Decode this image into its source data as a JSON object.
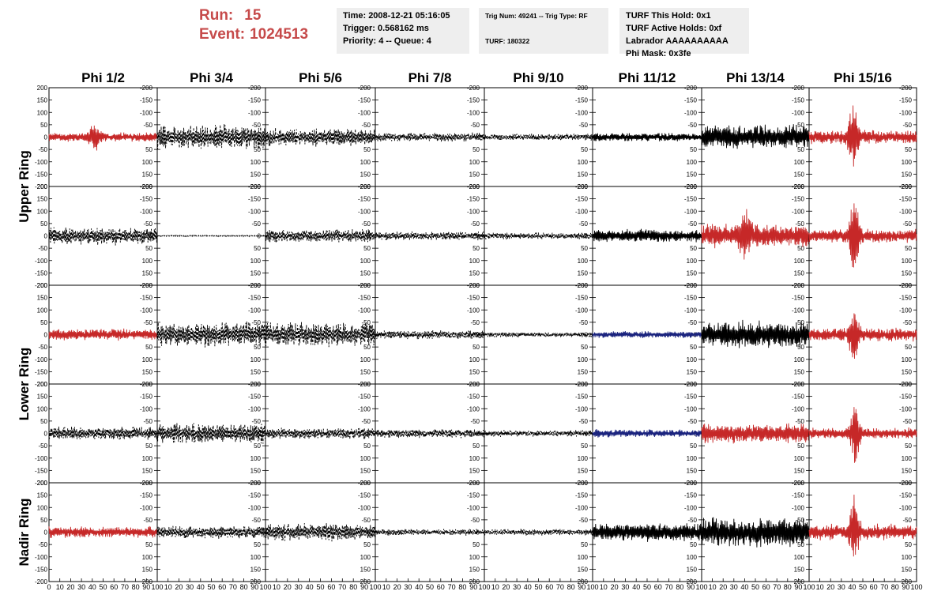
{
  "header": {
    "run_label": "Run:",
    "run_value": "15",
    "event_label": "Event:",
    "event_value": "1024513",
    "info1": [
      "Time: 2008-12-21 05:16:05",
      "Trigger: 0.568162 ms",
      "Priority: 4 -- Queue: 4"
    ],
    "info2": [
      "Trig Num: 49241 -- Trig Type: RF",
      "TURF: 180322"
    ],
    "info3": [
      "TURF This Hold: 0x1",
      "TURF Active Holds: 0xf",
      "Labrador AAAAAAAAAA",
      "Phi Mask: 0x3fe"
    ]
  },
  "chart_data": {
    "type": "line",
    "columns": [
      "Phi 1/2",
      "Phi 3/4",
      "Phi 5/6",
      "Phi 7/8",
      "Phi 9/10",
      "Phi 11/12",
      "Phi 13/14",
      "Phi 15/16"
    ],
    "ring_labels": [
      "Upper Ring",
      "Lower Ring",
      "Nadir Ring"
    ],
    "ylim": [
      -200,
      200
    ],
    "xlim": [
      0,
      100
    ],
    "yticks": [
      -200,
      -150,
      -100,
      -50,
      0,
      50,
      100,
      150,
      200
    ],
    "yticks_right": [
      "200",
      "150",
      "100",
      "50",
      "0",
      "-50",
      "-100",
      "-150",
      "-200"
    ],
    "x_tick_labels": [
      [
        "0",
        "10",
        "20",
        "30",
        "40",
        "50",
        "60",
        "70",
        "80",
        "90",
        "100"
      ],
      [
        "10",
        "20",
        "30",
        "40",
        "50",
        "60",
        "70",
        "80",
        "90",
        "100"
      ],
      [
        "10",
        "20",
        "30",
        "40",
        "50",
        "60",
        "70",
        "80",
        "90",
        "100"
      ],
      [
        "10",
        "20",
        "30",
        "40",
        "50",
        "60",
        "70",
        "80",
        "90",
        "100"
      ],
      [
        "10",
        "20",
        "30",
        "40",
        "50",
        "60",
        "70",
        "80",
        "90",
        "100"
      ],
      [
        "10",
        "20",
        "30",
        "40",
        "50",
        "60",
        "70",
        "80",
        "90",
        "100"
      ],
      [
        "10",
        "20",
        "30",
        "40",
        "50",
        "60",
        "70",
        "80",
        "90",
        "100"
      ],
      [
        "10",
        "20",
        "30",
        "40",
        "50",
        "60",
        "70",
        "80",
        "90",
        "100"
      ]
    ],
    "colors": {
      "red": "#c62828",
      "black": "#000000",
      "blue": "#1a237e"
    },
    "traces": [
      [
        {
          "color": "red",
          "style": "solid",
          "amplitude": 20,
          "pulse_at": 42,
          "pulse_amp": 60
        },
        {
          "color": "black",
          "style": "dashed",
          "amplitude": 55,
          "pulse_at": 0,
          "pulse_amp": 0
        },
        {
          "color": "black",
          "style": "dashed",
          "amplitude": 40,
          "pulse_at": 0,
          "pulse_amp": 0
        },
        {
          "color": "black",
          "style": "dashed",
          "amplitude": 20,
          "pulse_at": 0,
          "pulse_amp": 0
        },
        {
          "color": "black",
          "style": "dashed",
          "amplitude": 15,
          "pulse_at": 0,
          "pulse_amp": 0
        },
        {
          "color": "black",
          "style": "solid",
          "amplitude": 18,
          "pulse_at": 0,
          "pulse_amp": 0
        },
        {
          "color": "black",
          "style": "solid",
          "amplitude": 55,
          "pulse_at": 0,
          "pulse_amp": 0
        },
        {
          "color": "red",
          "style": "solid",
          "amplitude": 30,
          "pulse_at": 41,
          "pulse_amp": 150
        }
      ],
      [
        {
          "color": "black",
          "style": "dashed",
          "amplitude": 40,
          "pulse_at": 0,
          "pulse_amp": 0
        },
        {
          "color": "black",
          "style": "dashed",
          "amplitude": 3,
          "pulse_at": 0,
          "pulse_amp": 0
        },
        {
          "color": "black",
          "style": "dashed",
          "amplitude": 30,
          "pulse_at": 0,
          "pulse_amp": 0
        },
        {
          "color": "black",
          "style": "dashed",
          "amplitude": 20,
          "pulse_at": 0,
          "pulse_amp": 0
        },
        {
          "color": "black",
          "style": "dashed",
          "amplitude": 15,
          "pulse_at": 0,
          "pulse_amp": 0
        },
        {
          "color": "black",
          "style": "solid",
          "amplitude": 30,
          "pulse_at": 0,
          "pulse_amp": 0
        },
        {
          "color": "red",
          "style": "solid",
          "amplitude": 55,
          "pulse_at": 40,
          "pulse_amp": 110
        },
        {
          "color": "red",
          "style": "solid",
          "amplitude": 30,
          "pulse_at": 42,
          "pulse_amp": 160
        }
      ],
      [
        {
          "color": "red",
          "style": "solid",
          "amplitude": 25,
          "pulse_at": 0,
          "pulse_amp": 0
        },
        {
          "color": "black",
          "style": "dashed",
          "amplitude": 55,
          "pulse_at": 0,
          "pulse_amp": 0
        },
        {
          "color": "black",
          "style": "dashed",
          "amplitude": 55,
          "pulse_at": 0,
          "pulse_amp": 0
        },
        {
          "color": "black",
          "style": "dashed",
          "amplitude": 20,
          "pulse_at": 0,
          "pulse_amp": 0
        },
        {
          "color": "black",
          "style": "dashed",
          "amplitude": 12,
          "pulse_at": 0,
          "pulse_amp": 0
        },
        {
          "color": "blue",
          "style": "solid",
          "amplitude": 15,
          "pulse_at": 0,
          "pulse_amp": 0
        },
        {
          "color": "black",
          "style": "solid",
          "amplitude": 60,
          "pulse_at": 0,
          "pulse_amp": 0
        },
        {
          "color": "red",
          "style": "solid",
          "amplitude": 30,
          "pulse_at": 42,
          "pulse_amp": 120
        }
      ],
      [
        {
          "color": "black",
          "style": "dashed",
          "amplitude": 30,
          "pulse_at": 0,
          "pulse_amp": 0
        },
        {
          "color": "black",
          "style": "dashed",
          "amplitude": 45,
          "pulse_at": 0,
          "pulse_amp": 0
        },
        {
          "color": "black",
          "style": "dashed",
          "amplitude": 25,
          "pulse_at": 0,
          "pulse_amp": 0
        },
        {
          "color": "black",
          "style": "dashed",
          "amplitude": 20,
          "pulse_at": 0,
          "pulse_amp": 0
        },
        {
          "color": "black",
          "style": "dashed",
          "amplitude": 15,
          "pulse_at": 0,
          "pulse_amp": 0
        },
        {
          "color": "blue",
          "style": "solid",
          "amplitude": 18,
          "pulse_at": 0,
          "pulse_amp": 0
        },
        {
          "color": "red",
          "style": "solid",
          "amplitude": 45,
          "pulse_at": 0,
          "pulse_amp": 0
        },
        {
          "color": "red",
          "style": "solid",
          "amplitude": 25,
          "pulse_at": 43,
          "pulse_amp": 150
        }
      ],
      [
        {
          "color": "red",
          "style": "solid",
          "amplitude": 25,
          "pulse_at": 0,
          "pulse_amp": 0
        },
        {
          "color": "black",
          "style": "dashed",
          "amplitude": 30,
          "pulse_at": 0,
          "pulse_amp": 0
        },
        {
          "color": "black",
          "style": "dashed",
          "amplitude": 40,
          "pulse_at": 0,
          "pulse_amp": 0
        },
        {
          "color": "black",
          "style": "dashed",
          "amplitude": 15,
          "pulse_at": 0,
          "pulse_amp": 0
        },
        {
          "color": "black",
          "style": "dashed",
          "amplitude": 15,
          "pulse_at": 0,
          "pulse_amp": 0
        },
        {
          "color": "black",
          "style": "solid",
          "amplitude": 40,
          "pulse_at": 0,
          "pulse_amp": 0
        },
        {
          "color": "black",
          "style": "solid",
          "amplitude": 65,
          "pulse_at": 0,
          "pulse_amp": 0
        },
        {
          "color": "red",
          "style": "solid",
          "amplitude": 35,
          "pulse_at": 42,
          "pulse_amp": 130
        }
      ]
    ]
  }
}
